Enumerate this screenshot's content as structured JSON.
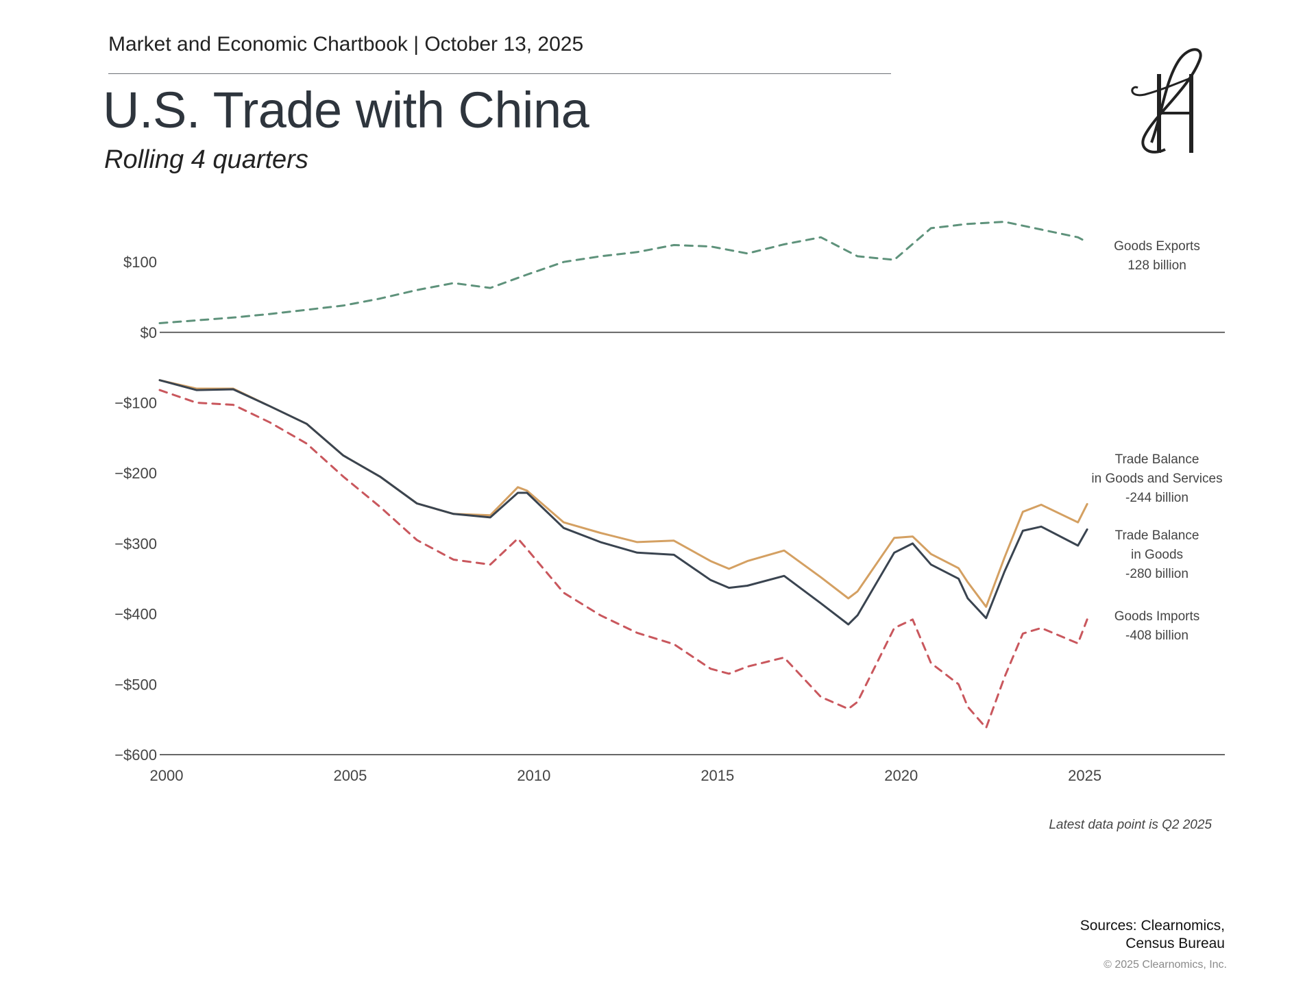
{
  "header": {
    "line": "Market and Economic Chartbook | October 13, 2025",
    "title": "U.S. Trade with China",
    "subtitle": "Rolling 4 quarters",
    "logo_alt": "logo-mark"
  },
  "footer": {
    "note": "Latest data point is Q2 2025",
    "sources_line1": "Sources: Clearnomics,",
    "sources_line2": "Census Bureau",
    "copyright": "© 2025 Clearnomics, Inc."
  },
  "colors": {
    "exports": "#5e927b",
    "imports": "#c9575d",
    "balance_gs": "#d4a062",
    "balance_goods": "#3a4450",
    "axis": "#666666",
    "text": "#444444"
  },
  "chart_data": {
    "type": "line",
    "title": "U.S. Trade with China",
    "subtitle": "Rolling 4 quarters",
    "xlim": [
      2000,
      2029
    ],
    "ylim": [
      -600,
      180
    ],
    "x_ticks": [
      2000,
      2005,
      2010,
      2015,
      2020,
      2025
    ],
    "y_ticks": [
      100,
      0,
      -100,
      -200,
      -300,
      -400,
      -500,
      -600
    ],
    "y_tick_labels": [
      "$100",
      "$0",
      "−$100",
      "−$200",
      "−$300",
      "−$400",
      "−$500",
      "−$600"
    ],
    "series": [
      {
        "name": "Goods Exports",
        "label_lines": [
          "Goods Exports",
          "128 billion"
        ],
        "color_key": "exports",
        "dashed": true,
        "points": [
          [
            2000,
            13
          ],
          [
            2001,
            17
          ],
          [
            2002,
            21
          ],
          [
            2003,
            26
          ],
          [
            2004,
            32
          ],
          [
            2005,
            38
          ],
          [
            2006,
            48
          ],
          [
            2007,
            60
          ],
          [
            2008,
            70
          ],
          [
            2009,
            63
          ],
          [
            2010,
            82
          ],
          [
            2011,
            100
          ],
          [
            2012,
            108
          ],
          [
            2013,
            114
          ],
          [
            2014,
            124
          ],
          [
            2015,
            122
          ],
          [
            2016,
            112
          ],
          [
            2017,
            125
          ],
          [
            2018,
            135
          ],
          [
            2019,
            108
          ],
          [
            2020,
            103
          ],
          [
            2021,
            148
          ],
          [
            2022,
            154
          ],
          [
            2023,
            157
          ],
          [
            2024,
            146
          ],
          [
            2025,
            135
          ],
          [
            2025.25,
            128
          ]
        ]
      },
      {
        "name": "Trade Balance in Goods and Services",
        "label_lines": [
          "Trade Balance",
          "in Goods and Services",
          "-244 billion"
        ],
        "color_key": "balance_gs",
        "dashed": false,
        "points": [
          [
            2000,
            -68
          ],
          [
            2001,
            -80
          ],
          [
            2002,
            -80
          ],
          [
            2003,
            -105
          ],
          [
            2004,
            -130
          ],
          [
            2005,
            -175
          ],
          [
            2006,
            -205
          ],
          [
            2007,
            -243
          ],
          [
            2008,
            -258
          ],
          [
            2009,
            -260
          ],
          [
            2009.75,
            -220
          ],
          [
            2010,
            -225
          ],
          [
            2011,
            -270
          ],
          [
            2012,
            -285
          ],
          [
            2013,
            -298
          ],
          [
            2014,
            -296
          ],
          [
            2015,
            -325
          ],
          [
            2015.5,
            -336
          ],
          [
            2016,
            -325
          ],
          [
            2017,
            -310
          ],
          [
            2018,
            -348
          ],
          [
            2018.75,
            -378
          ],
          [
            2019,
            -368
          ],
          [
            2020,
            -292
          ],
          [
            2020.5,
            -290
          ],
          [
            2021,
            -315
          ],
          [
            2021.75,
            -335
          ],
          [
            2022,
            -355
          ],
          [
            2022.5,
            -390
          ],
          [
            2023,
            -320
          ],
          [
            2023.5,
            -255
          ],
          [
            2024,
            -245
          ],
          [
            2025,
            -270
          ],
          [
            2025.25,
            -244
          ]
        ]
      },
      {
        "name": "Trade Balance in Goods",
        "label_lines": [
          "Trade Balance",
          "in Goods",
          "-280 billion"
        ],
        "color_key": "balance_goods",
        "dashed": false,
        "points": [
          [
            2000,
            -68
          ],
          [
            2001,
            -82
          ],
          [
            2002,
            -81
          ],
          [
            2003,
            -105
          ],
          [
            2004,
            -130
          ],
          [
            2005,
            -175
          ],
          [
            2006,
            -205
          ],
          [
            2007,
            -243
          ],
          [
            2008,
            -258
          ],
          [
            2009,
            -263
          ],
          [
            2009.75,
            -228
          ],
          [
            2010,
            -228
          ],
          [
            2011,
            -278
          ],
          [
            2012,
            -298
          ],
          [
            2013,
            -313
          ],
          [
            2014,
            -316
          ],
          [
            2015,
            -352
          ],
          [
            2015.5,
            -363
          ],
          [
            2016,
            -360
          ],
          [
            2017,
            -346
          ],
          [
            2018,
            -385
          ],
          [
            2018.75,
            -415
          ],
          [
            2019,
            -402
          ],
          [
            2020,
            -313
          ],
          [
            2020.5,
            -300
          ],
          [
            2021,
            -330
          ],
          [
            2021.75,
            -350
          ],
          [
            2022,
            -378
          ],
          [
            2022.5,
            -406
          ],
          [
            2023,
            -340
          ],
          [
            2023.5,
            -282
          ],
          [
            2024,
            -276
          ],
          [
            2025,
            -303
          ],
          [
            2025.25,
            -280
          ]
        ]
      },
      {
        "name": "Goods Imports",
        "label_lines": [
          "Goods Imports",
          "-408 billion"
        ],
        "color_key": "imports",
        "dashed": true,
        "points": [
          [
            2000,
            -82
          ],
          [
            2001,
            -100
          ],
          [
            2002,
            -103
          ],
          [
            2003,
            -128
          ],
          [
            2004,
            -158
          ],
          [
            2005,
            -205
          ],
          [
            2006,
            -248
          ],
          [
            2007,
            -295
          ],
          [
            2008,
            -323
          ],
          [
            2009,
            -330
          ],
          [
            2009.75,
            -293
          ],
          [
            2010,
            -308
          ],
          [
            2011,
            -370
          ],
          [
            2012,
            -402
          ],
          [
            2013,
            -427
          ],
          [
            2014,
            -443
          ],
          [
            2015,
            -478
          ],
          [
            2015.5,
            -485
          ],
          [
            2016,
            -475
          ],
          [
            2017,
            -462
          ],
          [
            2018,
            -518
          ],
          [
            2018.75,
            -535
          ],
          [
            2019,
            -525
          ],
          [
            2020,
            -420
          ],
          [
            2020.5,
            -408
          ],
          [
            2021,
            -470
          ],
          [
            2021.75,
            -500
          ],
          [
            2022,
            -532
          ],
          [
            2022.5,
            -562
          ],
          [
            2023,
            -490
          ],
          [
            2023.5,
            -428
          ],
          [
            2024,
            -420
          ],
          [
            2025,
            -442
          ],
          [
            2025.25,
            -408
          ]
        ]
      }
    ]
  }
}
